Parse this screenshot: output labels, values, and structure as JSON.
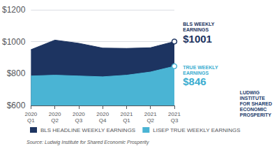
{
  "chart_data": {
    "type": "area",
    "categories": [
      "2020\nQ1",
      "2020\nQ2",
      "2020\nQ3",
      "2020\nQ4",
      "2021\nQ1",
      "2021\nQ2",
      "2021\nQ3"
    ],
    "series": [
      {
        "name": "BLS HEADLINE WEEKLY EARNINGS",
        "color": "#1d3461",
        "values": [
          950,
          1010,
          990,
          960,
          958,
          962,
          1001
        ]
      },
      {
        "name": "LISEP TRUE WEEKLY EARNINGS",
        "color": "#4ab4d4",
        "values": [
          785,
          790,
          785,
          780,
          790,
          810,
          846
        ]
      }
    ],
    "ylim": [
      600,
      1200
    ],
    "yticks": [
      {
        "value": 600,
        "label": "$600"
      },
      {
        "value": 800,
        "label": "$800"
      },
      {
        "value": 1000,
        "label": "$1000"
      },
      {
        "value": 1200,
        "label": "$1200"
      }
    ],
    "grid": true,
    "legend": "lower left",
    "annotations": [
      {
        "text": "BLS WEEKLY\nEARNINGS",
        "value_label": "$1001",
        "x": "2021\nQ3",
        "y": 1001,
        "color": "#1d3461"
      },
      {
        "text": "TRUE WEEKLY\nEARNINGS",
        "value_label": "$846",
        "x": "2021\nQ3",
        "y": 846,
        "color": "#3badd0"
      }
    ],
    "source": "Source: Ludwig Institute for Shared Economic Prosperity",
    "logo": {
      "text": "LUDWIG\nINSTITUTE\nFOR SHARED\nECONOMIC\nPROSPERITY",
      "color": "#1b3a6b"
    }
  }
}
